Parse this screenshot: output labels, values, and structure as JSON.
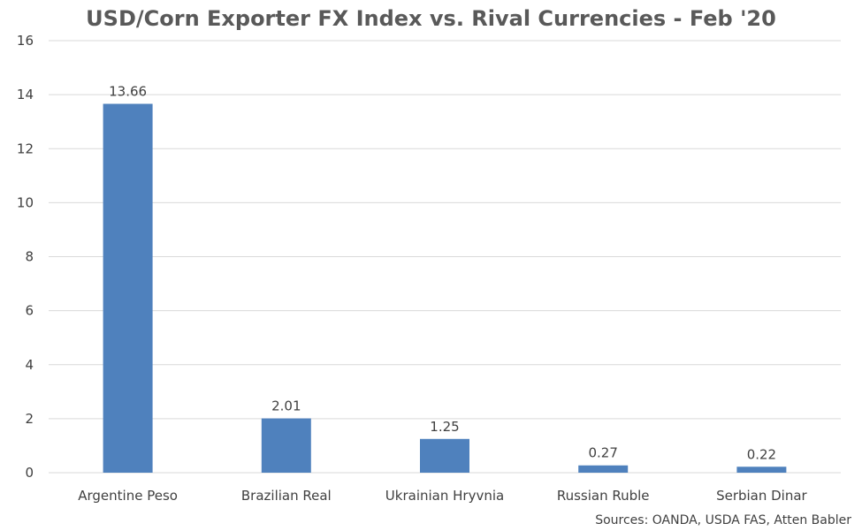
{
  "chart_data": {
    "type": "bar",
    "title": "USD/Corn Exporter FX Index vs. Rival Currencies - Feb '20",
    "xlabel": "",
    "ylabel": "",
    "categories": [
      "Argentine Peso",
      "Brazilian Real",
      "Ukrainian Hryvnia",
      "Russian Ruble",
      "Serbian Dinar"
    ],
    "values": [
      13.66,
      2.01,
      1.25,
      0.27,
      0.22
    ],
    "data_labels": [
      "13.66",
      "2.01",
      "1.25",
      "0.27",
      "0.22"
    ],
    "ylim": [
      0,
      16
    ],
    "yticks": [
      0,
      2,
      4,
      6,
      8,
      10,
      12,
      14,
      16
    ],
    "grid": true,
    "legend": "none",
    "bar_color": "#4F81BD",
    "grid_color": "#D9D9D9"
  },
  "source_note": "Sources: OANDA, USDA FAS, Atten Babler"
}
